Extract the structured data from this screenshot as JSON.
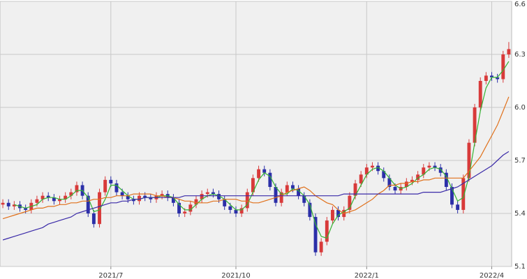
{
  "chart_data": {
    "type": "candlestick",
    "categories": [
      null,
      null,
      null,
      null,
      null,
      null,
      null,
      null,
      null,
      null,
      null,
      null,
      null,
      null,
      null,
      null,
      null,
      null,
      null,
      "2021/7",
      null,
      null,
      null,
      null,
      null,
      null,
      null,
      null,
      null,
      null,
      null,
      null,
      null,
      null,
      null,
      null,
      null,
      null,
      null,
      null,
      null,
      "2021/10",
      null,
      null,
      null,
      null,
      null,
      null,
      null,
      null,
      null,
      null,
      null,
      null,
      null,
      null,
      null,
      null,
      null,
      null,
      null,
      null,
      null,
      null,
      "2022/1",
      null,
      null,
      null,
      null,
      null,
      null,
      null,
      null,
      null,
      null,
      null,
      null,
      null,
      null,
      null,
      null,
      null,
      null,
      null,
      null,
      null,
      "2022/4",
      null,
      null,
      null
    ],
    "open": [
      5.45,
      5.46,
      5.44,
      5.45,
      5.43,
      5.42,
      5.46,
      5.48,
      5.5,
      5.49,
      5.47,
      5.48,
      5.5,
      5.52,
      5.56,
      5.5,
      5.4,
      5.34,
      5.52,
      5.59,
      5.57,
      5.52,
      5.5,
      5.48,
      5.47,
      5.5,
      5.49,
      5.48,
      5.5,
      5.51,
      5.49,
      5.46,
      5.4,
      5.41,
      5.45,
      5.48,
      5.51,
      5.52,
      5.51,
      5.48,
      5.44,
      5.42,
      5.4,
      5.43,
      5.52,
      5.6,
      5.65,
      5.63,
      5.55,
      5.46,
      5.52,
      5.56,
      5.54,
      5.5,
      5.46,
      5.38,
      5.18,
      5.24,
      5.36,
      5.42,
      5.38,
      5.42,
      5.5,
      5.57,
      5.62,
      5.66,
      5.67,
      5.64,
      5.6,
      5.55,
      5.53,
      5.55,
      5.58,
      5.59,
      5.62,
      5.66,
      5.67,
      5.66,
      5.63,
      5.55,
      5.45,
      5.42,
      5.6,
      5.8,
      6.0,
      6.15,
      6.18,
      6.17,
      6.16,
      6.3
    ],
    "high": [
      5.48,
      5.48,
      5.47,
      5.47,
      5.45,
      5.48,
      5.5,
      5.52,
      5.52,
      5.51,
      5.5,
      5.52,
      5.54,
      5.58,
      5.58,
      5.52,
      5.42,
      5.54,
      5.61,
      5.61,
      5.59,
      5.54,
      5.52,
      5.5,
      5.52,
      5.52,
      5.51,
      5.52,
      5.53,
      5.53,
      5.51,
      5.48,
      5.43,
      5.47,
      5.5,
      5.53,
      5.54,
      5.54,
      5.53,
      5.5,
      5.46,
      5.44,
      5.45,
      5.54,
      5.62,
      5.67,
      5.67,
      5.65,
      5.57,
      5.54,
      5.58,
      5.58,
      5.56,
      5.52,
      5.48,
      5.4,
      5.26,
      5.38,
      5.44,
      5.44,
      5.44,
      5.52,
      5.59,
      5.64,
      5.68,
      5.69,
      5.69,
      5.66,
      5.62,
      5.57,
      5.57,
      5.6,
      5.61,
      5.64,
      5.68,
      5.69,
      5.69,
      5.68,
      5.65,
      5.57,
      5.47,
      5.62,
      5.82,
      6.02,
      6.17,
      6.2,
      6.2,
      6.19,
      6.32,
      6.37
    ],
    "low": [
      5.43,
      5.42,
      5.42,
      5.41,
      5.4,
      5.4,
      5.44,
      5.46,
      5.47,
      5.45,
      5.45,
      5.46,
      5.48,
      5.5,
      5.48,
      5.38,
      5.32,
      5.32,
      5.5,
      5.55,
      5.5,
      5.48,
      5.46,
      5.45,
      5.45,
      5.47,
      5.46,
      5.46,
      5.48,
      5.47,
      5.44,
      5.38,
      5.38,
      5.39,
      5.43,
      5.46,
      5.49,
      5.49,
      5.46,
      5.42,
      5.4,
      5.38,
      5.38,
      5.41,
      5.5,
      5.58,
      5.61,
      5.53,
      5.44,
      5.44,
      5.5,
      5.52,
      5.48,
      5.44,
      5.36,
      5.16,
      5.16,
      5.22,
      5.34,
      5.36,
      5.36,
      5.4,
      5.48,
      5.55,
      5.6,
      5.64,
      5.62,
      5.58,
      5.53,
      5.51,
      5.51,
      5.53,
      5.56,
      5.57,
      5.6,
      5.64,
      5.64,
      5.61,
      5.53,
      5.43,
      5.4,
      5.4,
      5.58,
      5.78,
      5.98,
      6.13,
      6.15,
      6.14,
      6.14,
      6.28
    ],
    "close": [
      5.46,
      5.44,
      5.45,
      5.43,
      5.42,
      5.46,
      5.48,
      5.5,
      5.49,
      5.47,
      5.48,
      5.5,
      5.52,
      5.56,
      5.5,
      5.4,
      5.34,
      5.52,
      5.59,
      5.57,
      5.52,
      5.5,
      5.48,
      5.47,
      5.5,
      5.49,
      5.48,
      5.5,
      5.51,
      5.49,
      5.46,
      5.4,
      5.41,
      5.45,
      5.48,
      5.51,
      5.52,
      5.51,
      5.48,
      5.44,
      5.42,
      5.4,
      5.43,
      5.52,
      5.6,
      5.65,
      5.63,
      5.55,
      5.46,
      5.52,
      5.56,
      5.54,
      5.5,
      5.46,
      5.38,
      5.18,
      5.24,
      5.36,
      5.42,
      5.38,
      5.42,
      5.5,
      5.57,
      5.62,
      5.66,
      5.67,
      5.64,
      5.6,
      5.55,
      5.53,
      5.55,
      5.58,
      5.59,
      5.62,
      5.66,
      5.67,
      5.66,
      5.63,
      5.55,
      5.45,
      5.42,
      5.6,
      5.8,
      6.0,
      6.15,
      6.18,
      6.17,
      6.16,
      6.3,
      6.33
    ],
    "up_color": "#d83a3a",
    "down_color": "#2b2fa8",
    "series": [
      {
        "color": "#33b233",
        "values": [
          null,
          null,
          5.45,
          5.44,
          5.43,
          5.44,
          5.45,
          5.48,
          5.49,
          5.49,
          5.48,
          5.48,
          5.5,
          5.53,
          5.53,
          5.49,
          5.41,
          5.42,
          5.48,
          5.56,
          5.56,
          5.53,
          5.5,
          5.48,
          5.48,
          5.49,
          5.49,
          5.49,
          5.5,
          5.5,
          5.49,
          5.45,
          5.42,
          5.42,
          5.45,
          5.48,
          5.5,
          5.51,
          5.5,
          5.48,
          5.45,
          5.42,
          5.42,
          5.45,
          5.52,
          5.59,
          5.63,
          5.61,
          5.55,
          5.51,
          5.51,
          5.54,
          5.53,
          5.5,
          5.45,
          5.34,
          5.27,
          5.26,
          5.34,
          5.39,
          5.41,
          5.43,
          5.5,
          5.56,
          5.62,
          5.65,
          5.66,
          5.64,
          5.6,
          5.56,
          5.54,
          5.55,
          5.57,
          5.6,
          5.62,
          5.65,
          5.66,
          5.65,
          5.61,
          5.54,
          5.47,
          5.49,
          5.61,
          5.8,
          5.98,
          6.11,
          6.17,
          6.17,
          6.21,
          6.26
        ]
      },
      {
        "color": "#e0701a",
        "values": [
          5.37,
          5.38,
          5.39,
          5.4,
          5.41,
          5.42,
          5.43,
          5.43,
          5.44,
          5.44,
          5.45,
          5.45,
          5.46,
          5.46,
          5.47,
          5.47,
          5.48,
          5.48,
          5.49,
          5.49,
          5.5,
          5.5,
          5.5,
          5.51,
          5.51,
          5.51,
          5.51,
          5.5,
          5.5,
          5.49,
          5.49,
          5.48,
          5.47,
          5.47,
          5.46,
          5.46,
          5.46,
          5.47,
          5.47,
          5.48,
          5.48,
          5.48,
          5.47,
          5.47,
          5.46,
          5.46,
          5.47,
          5.48,
          5.49,
          5.5,
          5.52,
          5.53,
          5.54,
          5.55,
          5.53,
          5.5,
          5.48,
          5.46,
          5.45,
          5.42,
          5.4,
          5.41,
          5.42,
          5.44,
          5.46,
          5.48,
          5.51,
          5.53,
          5.56,
          5.56,
          5.57,
          5.57,
          5.58,
          5.58,
          5.59,
          5.59,
          5.6,
          5.6,
          5.6,
          5.6,
          5.6,
          5.6,
          5.64,
          5.68,
          5.72,
          5.78,
          5.84,
          5.9,
          5.98,
          6.06
        ]
      },
      {
        "color": "#3a2aa8",
        "values": [
          5.25,
          5.26,
          5.27,
          5.28,
          5.29,
          5.3,
          5.31,
          5.32,
          5.34,
          5.35,
          5.36,
          5.37,
          5.38,
          5.4,
          5.41,
          5.42,
          5.43,
          5.44,
          5.45,
          5.46,
          5.46,
          5.47,
          5.47,
          5.48,
          5.48,
          5.49,
          5.49,
          5.49,
          5.49,
          5.49,
          5.49,
          5.49,
          5.5,
          5.5,
          5.5,
          5.5,
          5.5,
          5.5,
          5.5,
          5.5,
          5.5,
          5.5,
          5.5,
          5.5,
          5.5,
          5.5,
          5.5,
          5.5,
          5.5,
          5.5,
          5.5,
          5.5,
          5.5,
          5.5,
          5.5,
          5.5,
          5.5,
          5.5,
          5.5,
          5.5,
          5.51,
          5.51,
          5.51,
          5.51,
          5.51,
          5.51,
          5.51,
          5.51,
          5.51,
          5.51,
          5.51,
          5.51,
          5.51,
          5.51,
          5.52,
          5.52,
          5.52,
          5.52,
          5.53,
          5.54,
          5.55,
          5.57,
          5.59,
          5.61,
          5.63,
          5.65,
          5.67,
          5.7,
          5.73,
          5.75
        ]
      }
    ],
    "ylim": [
      5.1,
      6.6
    ],
    "yticks": [
      5.1,
      5.4,
      5.7,
      {
        "value": 6.0,
        "label": "6.0"
      },
      6.3,
      6.6
    ],
    "grid": true
  }
}
